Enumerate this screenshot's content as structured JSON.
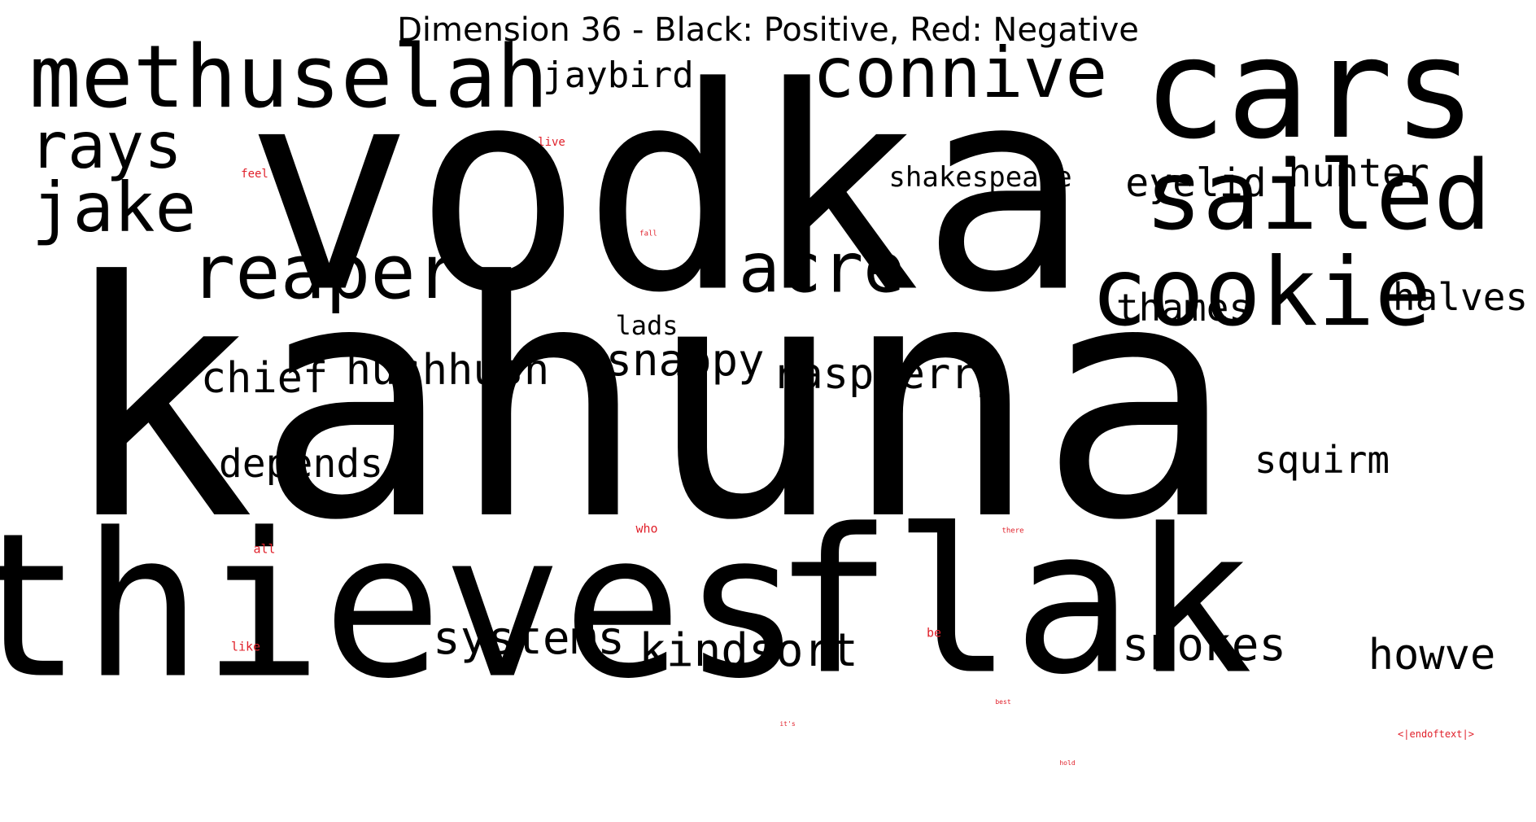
{
  "title": "Dimension 36 - Black: Positive, Red: Negative",
  "colors": {
    "positive": "#000000",
    "negative": "#e0202a",
    "background": "#ffffff"
  },
  "words": [
    {
      "text": "vodka",
      "polarity": "positive"
    },
    {
      "text": "kahuna",
      "polarity": "positive"
    },
    {
      "text": "thieves",
      "polarity": "positive"
    },
    {
      "text": "flak",
      "polarity": "positive"
    },
    {
      "text": "cars",
      "polarity": "positive"
    },
    {
      "text": "methuselah",
      "polarity": "positive"
    },
    {
      "text": "sailed",
      "polarity": "positive"
    },
    {
      "text": "cookie",
      "polarity": "positive"
    },
    {
      "text": "connive",
      "polarity": "positive"
    },
    {
      "text": "reaper",
      "polarity": "positive"
    },
    {
      "text": "acre",
      "polarity": "positive"
    },
    {
      "text": "rays",
      "polarity": "positive"
    },
    {
      "text": "jake",
      "polarity": "positive"
    },
    {
      "text": "jaybird",
      "polarity": "positive"
    },
    {
      "text": "shakespeare",
      "polarity": "positive"
    },
    {
      "text": "eyelid",
      "polarity": "positive"
    },
    {
      "text": "hunter",
      "polarity": "positive"
    },
    {
      "text": "thames",
      "polarity": "positive"
    },
    {
      "text": "halves",
      "polarity": "positive"
    },
    {
      "text": "lads",
      "polarity": "positive"
    },
    {
      "text": "snappy",
      "polarity": "positive"
    },
    {
      "text": "raspberry",
      "polarity": "positive"
    },
    {
      "text": "chief",
      "polarity": "positive"
    },
    {
      "text": "hushhush",
      "polarity": "positive"
    },
    {
      "text": "depends",
      "polarity": "positive"
    },
    {
      "text": "squirm",
      "polarity": "positive"
    },
    {
      "text": "systems",
      "polarity": "positive"
    },
    {
      "text": "kindsort",
      "polarity": "positive"
    },
    {
      "text": "spokes",
      "polarity": "positive"
    },
    {
      "text": "howve",
      "polarity": "positive"
    },
    {
      "text": "live",
      "polarity": "negative"
    },
    {
      "text": "feel",
      "polarity": "negative"
    },
    {
      "text": "fall",
      "polarity": "negative"
    },
    {
      "text": "who",
      "polarity": "negative"
    },
    {
      "text": "there",
      "polarity": "negative"
    },
    {
      "text": "all",
      "polarity": "negative"
    },
    {
      "text": "like",
      "polarity": "negative"
    },
    {
      "text": "be",
      "polarity": "negative"
    },
    {
      "text": "best",
      "polarity": "negative"
    },
    {
      "text": "it's",
      "polarity": "negative"
    },
    {
      "text": "hold",
      "polarity": "negative"
    },
    {
      "text": "<|endoftext|>",
      "polarity": "negative"
    }
  ]
}
